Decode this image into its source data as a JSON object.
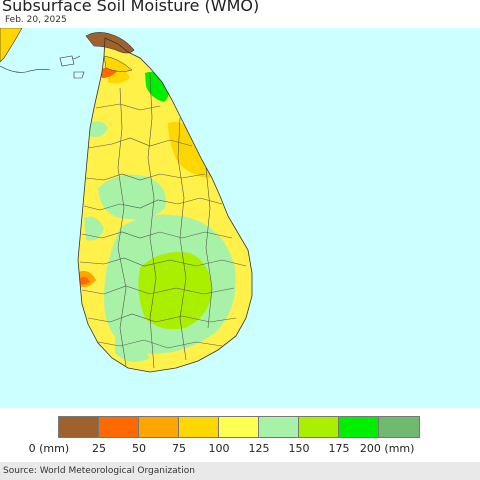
{
  "title": "Subsurface Soil Moisture (WMO)",
  "date": "Feb. 20, 2025",
  "source": "Source: World Meteorological Organization",
  "legend": {
    "colors": [
      "#a0622d",
      "#ff6a00",
      "#ffa500",
      "#ffd700",
      "#ffff4f",
      "#a8f2a8",
      "#aaee00",
      "#00ee00",
      "#6fba6f"
    ],
    "ticks": [
      "0 (mm)",
      "25",
      "50",
      "75",
      "100",
      "125",
      "150",
      "175",
      "200 (mm)"
    ]
  },
  "map": {
    "ocean_color": "#ccffff",
    "land_color": "#fff04a"
  }
}
